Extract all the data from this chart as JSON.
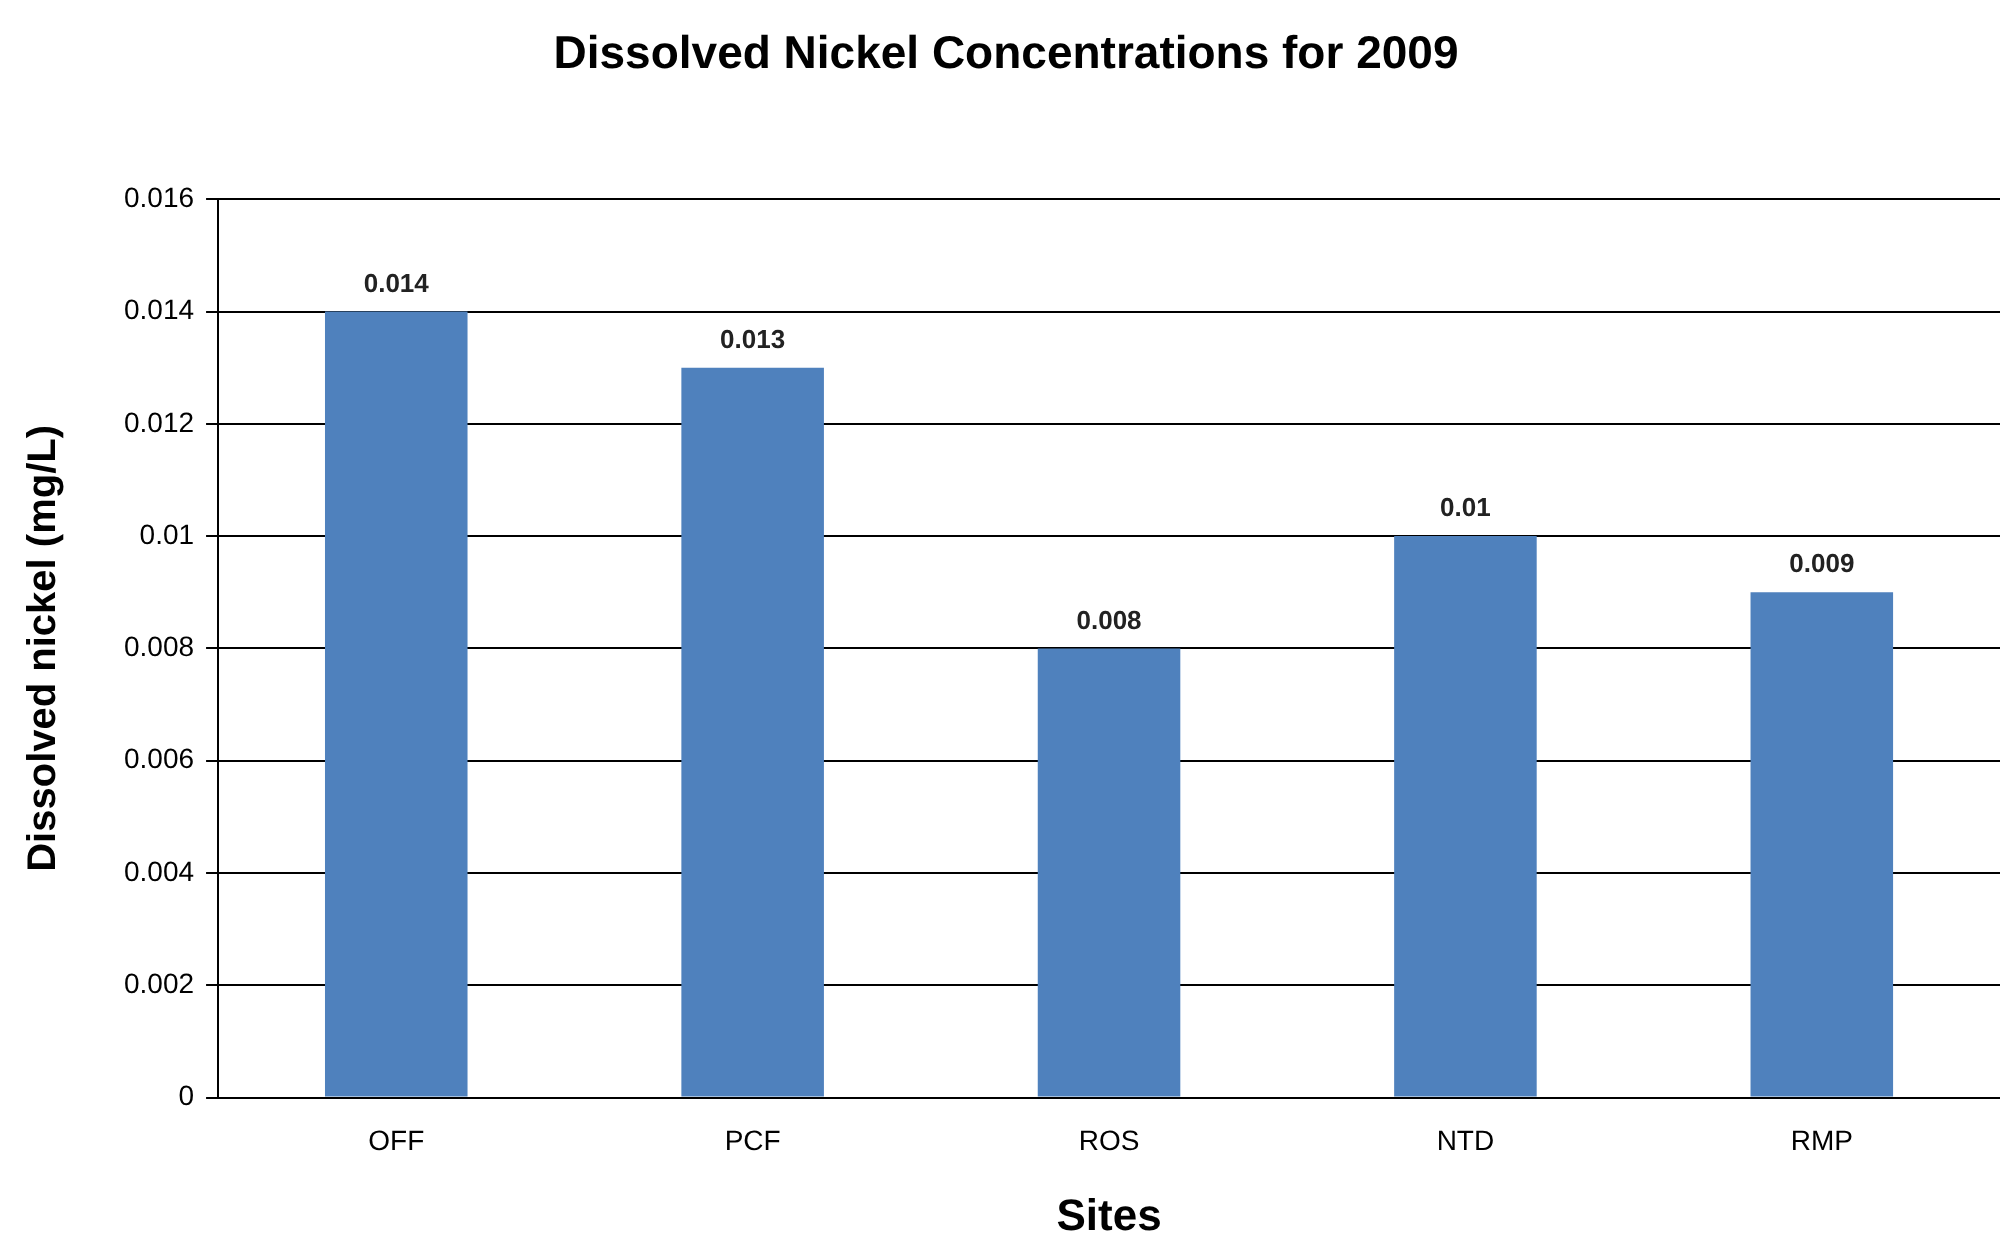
{
  "chart_data": {
    "type": "bar",
    "title": "Dissolved Nickel Concentrations for 2009",
    "xlabel": "Sites",
    "ylabel": "Dissolved nickel (mg/L)",
    "categories": [
      "OFF",
      "PCF",
      "ROS",
      "NTD",
      "RMP"
    ],
    "values": [
      0.014,
      0.013,
      0.008,
      0.01,
      0.009
    ],
    "color": "#4f81bd",
    "ylim": [
      0,
      0.016
    ],
    "yticks": [
      0,
      0.002,
      0.004,
      0.006,
      0.008,
      0.01,
      0.012,
      0.014,
      0.016
    ],
    "grid": "y",
    "legend": false,
    "data_labels": true
  }
}
